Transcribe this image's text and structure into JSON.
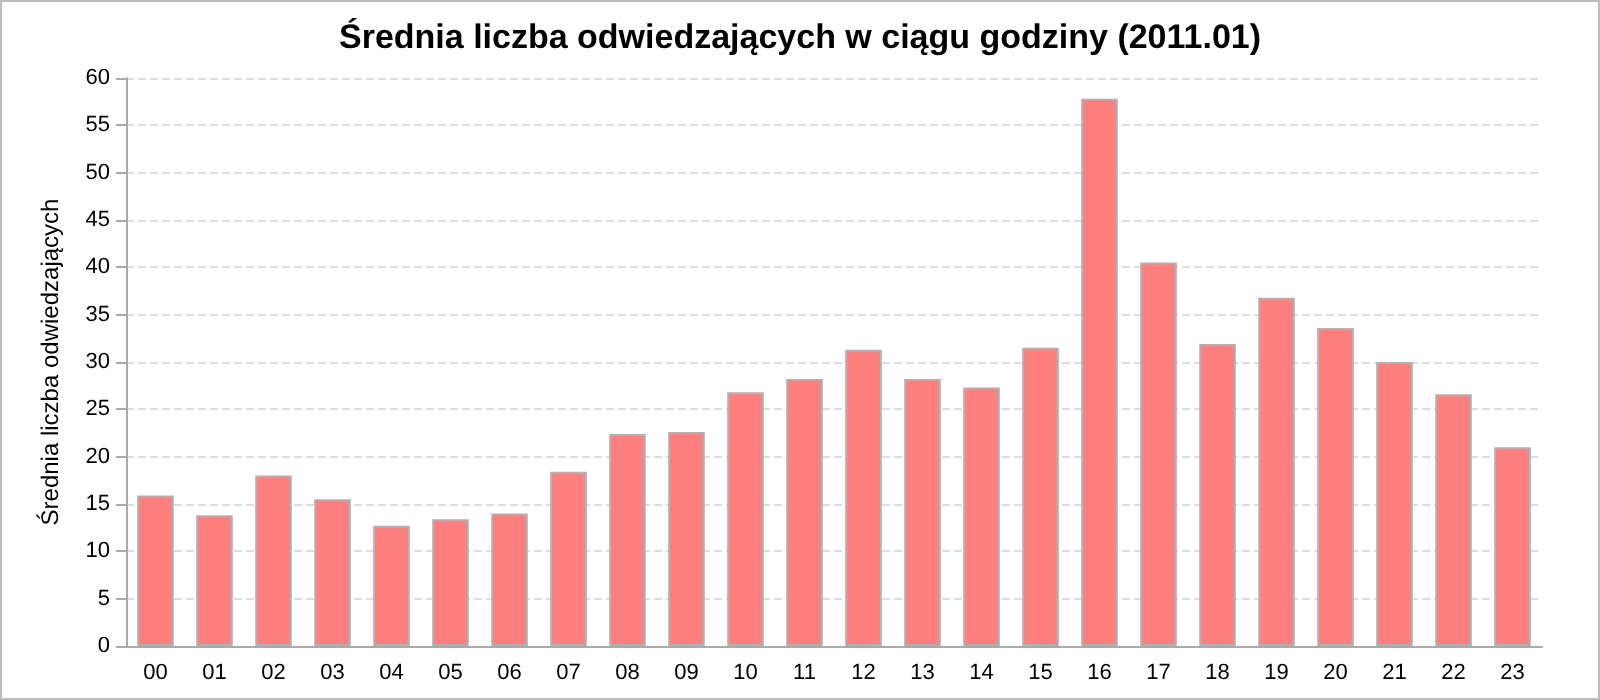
{
  "chart_data": {
    "type": "bar",
    "title": "Średnia liczba odwiedzających w ciągu godziny (2011.01)",
    "ylabel": "Średnia liczba odwiedzających",
    "categories": [
      "00",
      "01",
      "02",
      "03",
      "04",
      "05",
      "06",
      "07",
      "08",
      "09",
      "10",
      "11",
      "12",
      "13",
      "14",
      "15",
      "16",
      "17",
      "18",
      "19",
      "20",
      "21",
      "22",
      "23"
    ],
    "values": [
      15.9,
      13.8,
      18.0,
      15.5,
      12.7,
      13.4,
      14.0,
      18.4,
      22.4,
      22.6,
      26.8,
      28.2,
      31.3,
      28.2,
      27.3,
      31.5,
      57.8,
      40.5,
      31.9,
      36.8,
      33.6,
      30.0,
      26.6,
      21.0
    ],
    "color": "#ff7f7f",
    "ylim": [
      0,
      60
    ],
    "yticks": [
      0,
      5,
      10,
      15,
      20,
      25,
      30,
      35,
      40,
      45,
      50,
      55,
      60
    ],
    "grid": "y"
  }
}
